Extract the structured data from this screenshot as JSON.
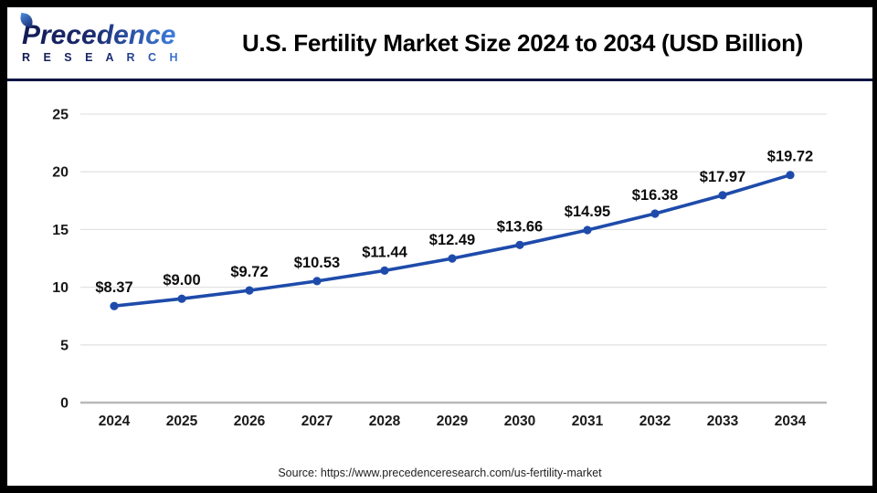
{
  "header": {
    "logo_primary": "Precedence",
    "logo_secondary": "R E S E A R C H",
    "title": "U.S. Fertility Market Size 2024 to 2034 (USD Billion)"
  },
  "footer": {
    "source": "Source: https://www.precedenceresearch.com/us-fertility-market"
  },
  "chart_data": {
    "type": "line",
    "title": "U.S. Fertility Market Size 2024 to 2034 (USD Billion)",
    "categories": [
      "2024",
      "2025",
      "2026",
      "2027",
      "2028",
      "2029",
      "2030",
      "2031",
      "2032",
      "2033",
      "2034"
    ],
    "series": [
      {
        "name": "U.S. Fertility Market Size (USD Billion)",
        "values": [
          8.37,
          9.0,
          9.72,
          10.53,
          11.44,
          12.49,
          13.66,
          14.95,
          16.38,
          17.97,
          19.72
        ]
      }
    ],
    "data_labels": [
      "$8.37",
      "$9.00",
      "$9.72",
      "$10.53",
      "$11.44",
      "$12.49",
      "$13.66",
      "$14.95",
      "$16.38",
      "$17.97",
      "$19.72"
    ],
    "xlabel": "",
    "ylabel": "",
    "ylim": [
      0,
      25
    ],
    "y_ticks": [
      0,
      5,
      10,
      15,
      20,
      25
    ],
    "grid": true,
    "legend": "none",
    "colors": {
      "line": "#1e4bab",
      "marker": "#1e4bab",
      "grid": "#e3e3e3",
      "axis": "#b9b9b9",
      "tick_label": "#1a1a1a",
      "data_label": "#0d0d0d"
    }
  }
}
